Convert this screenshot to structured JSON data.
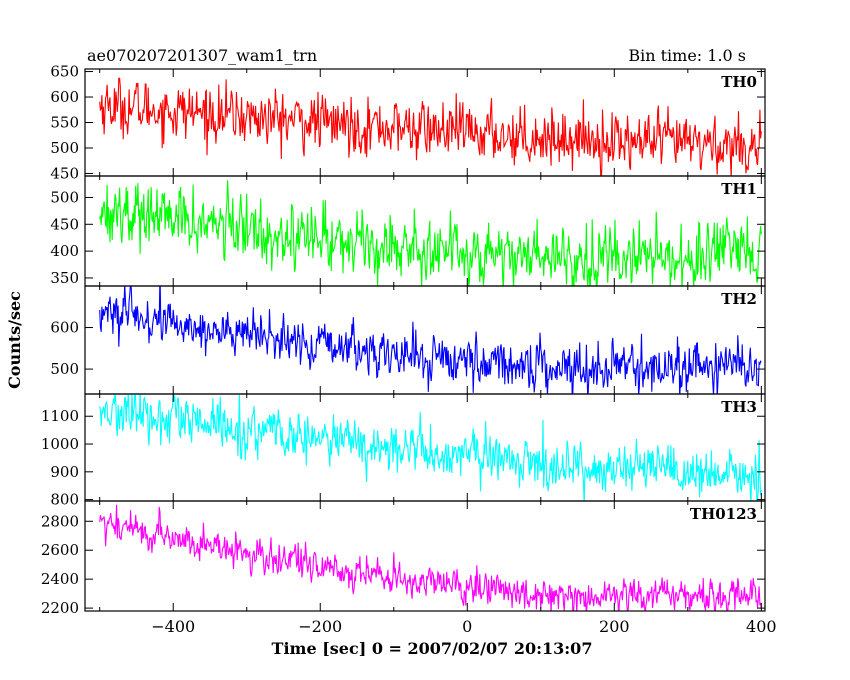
{
  "header": {
    "title": "ae070207201307_wam1_trn",
    "bin_time": "Bin time: 1.0 s"
  },
  "chart_data": {
    "type": "line",
    "xlabel": "Time [sec] 0 = 2007/02/07 20:13:07",
    "ylabel": "Counts/sec",
    "xlim": [
      -520,
      405
    ],
    "x_ticks": [
      -400,
      -200,
      0,
      200,
      400
    ],
    "x_tick_labels": [
      "−400",
      "−200",
      "0",
      "200",
      "400"
    ],
    "x_range": [
      -500,
      400
    ],
    "x_step": 1.0,
    "panels": [
      {
        "name": "TH0",
        "color": "#ff0000",
        "ylim": [
          445,
          655
        ],
        "y_ticks": [
          450,
          500,
          550,
          600,
          650
        ],
        "y_tick_labels": [
          "450",
          "500",
          "550",
          "600",
          "650"
        ],
        "start_value": 585,
        "end_value": 505,
        "scatter": 28,
        "trend_shape": "gradual-decline"
      },
      {
        "name": "TH1",
        "color": "#00ff00",
        "ylim": [
          335,
          540
        ],
        "y_ticks": [
          350,
          400,
          450,
          500
        ],
        "y_tick_labels": [
          "350",
          "400",
          "450",
          "500"
        ],
        "start_value": 480,
        "end_value": 390,
        "scatter": 30,
        "trend_shape": "decline-then-flat"
      },
      {
        "name": "TH2",
        "color": "#0000ff",
        "ylim": [
          440,
          700
        ],
        "y_ticks": [
          500,
          600
        ],
        "y_tick_labels": [
          "500",
          "600"
        ],
        "start_value": 640,
        "end_value": 505,
        "scatter": 28,
        "trend_shape": "decline-then-flat"
      },
      {
        "name": "TH3",
        "color": "#00ffff",
        "ylim": [
          795,
          1180
        ],
        "y_ticks": [
          800,
          900,
          1000,
          1100
        ],
        "y_tick_labels": [
          "800",
          "900",
          "1000",
          "1100"
        ],
        "start_value": 1120,
        "end_value": 880,
        "scatter": 45,
        "trend_shape": "gradual-decline"
      },
      {
        "name": "TH0123",
        "color": "#ff00ff",
        "ylim": [
          2180,
          2940
        ],
        "y_ticks": [
          2200,
          2400,
          2600,
          2800
        ],
        "y_tick_labels": [
          "2200",
          "2400",
          "2600",
          "2800"
        ],
        "start_value": 2800,
        "end_value": 2290,
        "scatter": 60,
        "trend_shape": "decline-then-flat"
      }
    ]
  }
}
